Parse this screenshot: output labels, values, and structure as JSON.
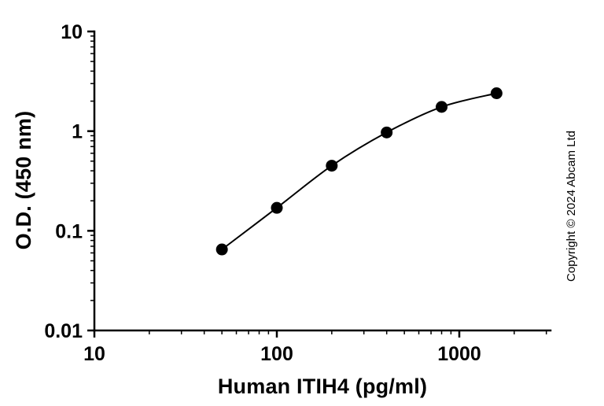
{
  "chart_data": {
    "type": "scatter",
    "title": "",
    "xlabel": "Human ITIH4 (pg/ml)",
    "ylabel": "O.D. (450 nm)",
    "xscale": "log",
    "yscale": "log",
    "xlim": [
      10,
      3162
    ],
    "ylim": [
      0.01,
      10
    ],
    "x_ticks": [
      10,
      100,
      1000
    ],
    "x_tick_labels": [
      "10",
      "100",
      "1000"
    ],
    "y_ticks": [
      0.01,
      0.1,
      1,
      10
    ],
    "y_tick_labels": [
      "0.01",
      "0.1",
      "1",
      "10"
    ],
    "x": [
      50,
      100,
      200,
      400,
      800,
      1600
    ],
    "y": [
      0.065,
      0.17,
      0.45,
      0.97,
      1.75,
      2.4
    ],
    "marker": "circle",
    "marker_color": "#000000",
    "line_color": "#000000",
    "grid": false,
    "legend": "none"
  },
  "annotations": {
    "copyright": "Copyright © 2024 Abcam Ltd"
  }
}
